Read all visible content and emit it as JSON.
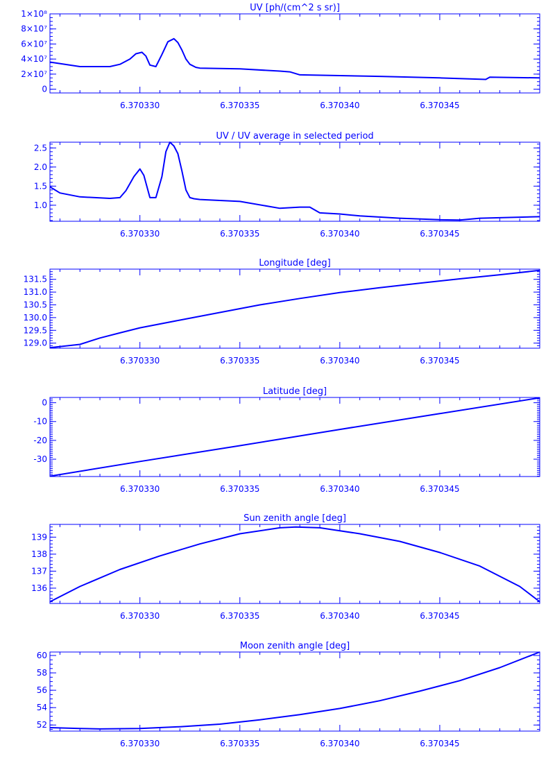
{
  "figure": {
    "color": "#0000ff",
    "x_ticks": [
      "6.370330",
      "6.370335",
      "6.370340",
      "6.370345"
    ]
  },
  "chart_data": [
    {
      "type": "line",
      "title": "UV [ph/(cm^2 s sr)]",
      "xlim": [
        6.3703255,
        6.37035
      ],
      "ylim": [
        -5000000,
        100000000
      ],
      "y_ticks": [
        {
          "value": 0,
          "label": "0"
        },
        {
          "value": 20000000,
          "label": "2×10⁷"
        },
        {
          "value": 40000000,
          "label": "4×10⁷"
        },
        {
          "value": 60000000,
          "label": "6×10⁷"
        },
        {
          "value": 80000000,
          "label": "8×10⁷"
        },
        {
          "value": 100000000,
          "label": "1×10⁸"
        }
      ],
      "y_minor": 5000000,
      "series": [
        {
          "x": [
            6.3703255,
            6.370327,
            6.3703285,
            6.370329,
            6.3703295,
            6.3703298,
            6.3703301,
            6.3703303,
            6.3703305,
            6.3703308,
            6.3703311,
            6.3703314,
            6.3703317,
            6.3703319,
            6.3703321,
            6.3703323,
            6.3703325,
            6.3703328,
            6.370333,
            6.370333,
            6.370335,
            6.370337,
            6.3703375,
            6.370338,
            6.37034,
            6.370342,
            6.370345,
            6.3703473,
            6.3703475,
            6.37035
          ],
          "y": [
            36000000,
            30000000,
            30000000,
            33000000,
            40000000,
            47000000,
            49000000,
            44000000,
            32000000,
            30000000,
            46000000,
            63000000,
            67000000,
            62000000,
            52000000,
            40000000,
            33000000,
            29000000,
            28000000,
            28000000,
            27000000,
            24000000,
            23000000,
            19000000,
            18000000,
            17000000,
            15000000,
            13000000,
            16000000,
            15000000
          ]
        }
      ]
    },
    {
      "type": "line",
      "title": "UV / UV average in selected period",
      "xlim": [
        6.3703255,
        6.37035
      ],
      "ylim": [
        0.58,
        2.65
      ],
      "y_ticks": [
        {
          "value": 1.0,
          "label": "1.0"
        },
        {
          "value": 1.5,
          "label": "1.5"
        },
        {
          "value": 2.0,
          "label": "2.0"
        },
        {
          "value": 2.5,
          "label": "2.5"
        }
      ],
      "y_minor": 0.1,
      "series": [
        {
          "x": [
            6.3703255,
            6.370326,
            6.370327,
            6.3703285,
            6.370329,
            6.3703293,
            6.3703297,
            6.37033,
            6.3703302,
            6.3703305,
            6.3703308,
            6.3703311,
            6.3703313,
            6.3703315,
            6.3703317,
            6.3703319,
            6.3703321,
            6.3703323,
            6.3703325,
            6.3703327,
            6.370333,
            6.370335,
            6.370337,
            6.370338,
            6.3703385,
            6.370339,
            6.37034,
            6.370341,
            6.370343,
            6.370345,
            6.370346,
            6.370347,
            6.37035
          ],
          "y": [
            1.48,
            1.32,
            1.22,
            1.18,
            1.2,
            1.38,
            1.75,
            1.95,
            1.78,
            1.2,
            1.2,
            1.75,
            2.4,
            2.65,
            2.55,
            2.35,
            1.9,
            1.4,
            1.2,
            1.17,
            1.15,
            1.1,
            0.92,
            0.95,
            0.95,
            0.8,
            0.77,
            0.72,
            0.66,
            0.62,
            0.61,
            0.66,
            0.7
          ]
        }
      ]
    },
    {
      "type": "line",
      "title": "Longitude [deg]",
      "xlim": [
        6.3703255,
        6.37035
      ],
      "ylim": [
        128.8,
        131.9
      ],
      "y_ticks": [
        {
          "value": 129.0,
          "label": "129.0"
        },
        {
          "value": 129.5,
          "label": "129.5"
        },
        {
          "value": 130.0,
          "label": "130.0"
        },
        {
          "value": 130.5,
          "label": "130.5"
        },
        {
          "value": 131.0,
          "label": "131.0"
        },
        {
          "value": 131.5,
          "label": "131.5"
        }
      ],
      "y_minor": 0.1,
      "series": [
        {
          "x": [
            6.3703255,
            6.370327,
            6.370328,
            6.370329,
            6.37033,
            6.370332,
            6.370334,
            6.370336,
            6.370338,
            6.37034,
            6.370342,
            6.370344,
            6.370346,
            6.370348,
            6.37035
          ],
          "y": [
            128.82,
            128.95,
            129.2,
            129.4,
            129.6,
            129.9,
            130.2,
            130.5,
            130.75,
            130.98,
            131.17,
            131.35,
            131.52,
            131.68,
            131.85
          ]
        }
      ]
    },
    {
      "type": "line",
      "title": "Latitude [deg]",
      "xlim": [
        6.3703255,
        6.37035
      ],
      "ylim": [
        -39.2,
        2.8
      ],
      "y_ticks": [
        {
          "value": -30,
          "label": "-30"
        },
        {
          "value": -20,
          "label": "-20"
        },
        {
          "value": -10,
          "label": "-10"
        },
        {
          "value": 0,
          "label": "0"
        }
      ],
      "y_minor": 1,
      "series": [
        {
          "x": [
            6.3703255,
            6.37033,
            6.370335,
            6.37034,
            6.370345,
            6.37035
          ],
          "y": [
            -39.0,
            -31.2,
            -22.8,
            -14.2,
            -5.8,
            2.6
          ]
        }
      ]
    },
    {
      "type": "line",
      "title": "Sun zenith angle [deg]",
      "xlim": [
        6.3703255,
        6.37035
      ],
      "ylim": [
        135.1,
        139.75
      ],
      "y_ticks": [
        {
          "value": 136,
          "label": "136"
        },
        {
          "value": 137,
          "label": "137"
        },
        {
          "value": 138,
          "label": "138"
        },
        {
          "value": 139,
          "label": "139"
        }
      ],
      "y_minor": 0.2,
      "series": [
        {
          "x": [
            6.3703255,
            6.370327,
            6.370329,
            6.370331,
            6.370333,
            6.370335,
            6.370337,
            6.3703378,
            6.370339,
            6.370341,
            6.370343,
            6.370345,
            6.370347,
            6.370349,
            6.37035
          ],
          "y": [
            135.2,
            136.1,
            137.1,
            137.9,
            138.6,
            139.2,
            139.55,
            139.6,
            139.55,
            139.2,
            138.75,
            138.1,
            137.3,
            136.1,
            135.2
          ]
        }
      ]
    },
    {
      "type": "line",
      "title": "Moon zenith angle [deg]",
      "xlim": [
        6.3703255,
        6.37035
      ],
      "ylim": [
        51.3,
        60.4
      ],
      "y_ticks": [
        {
          "value": 52,
          "label": "52"
        },
        {
          "value": 54,
          "label": "54"
        },
        {
          "value": 56,
          "label": "56"
        },
        {
          "value": 58,
          "label": "58"
        },
        {
          "value": 60,
          "label": "60"
        }
      ],
      "y_minor": 0.5,
      "series": [
        {
          "x": [
            6.3703255,
            6.370327,
            6.370328,
            6.37033,
            6.370332,
            6.370334,
            6.370336,
            6.370338,
            6.37034,
            6.370342,
            6.370344,
            6.370346,
            6.370348,
            6.37035
          ],
          "y": [
            51.7,
            51.6,
            51.55,
            51.6,
            51.8,
            52.1,
            52.6,
            53.2,
            53.9,
            54.8,
            55.9,
            57.1,
            58.6,
            60.4
          ]
        }
      ]
    }
  ]
}
